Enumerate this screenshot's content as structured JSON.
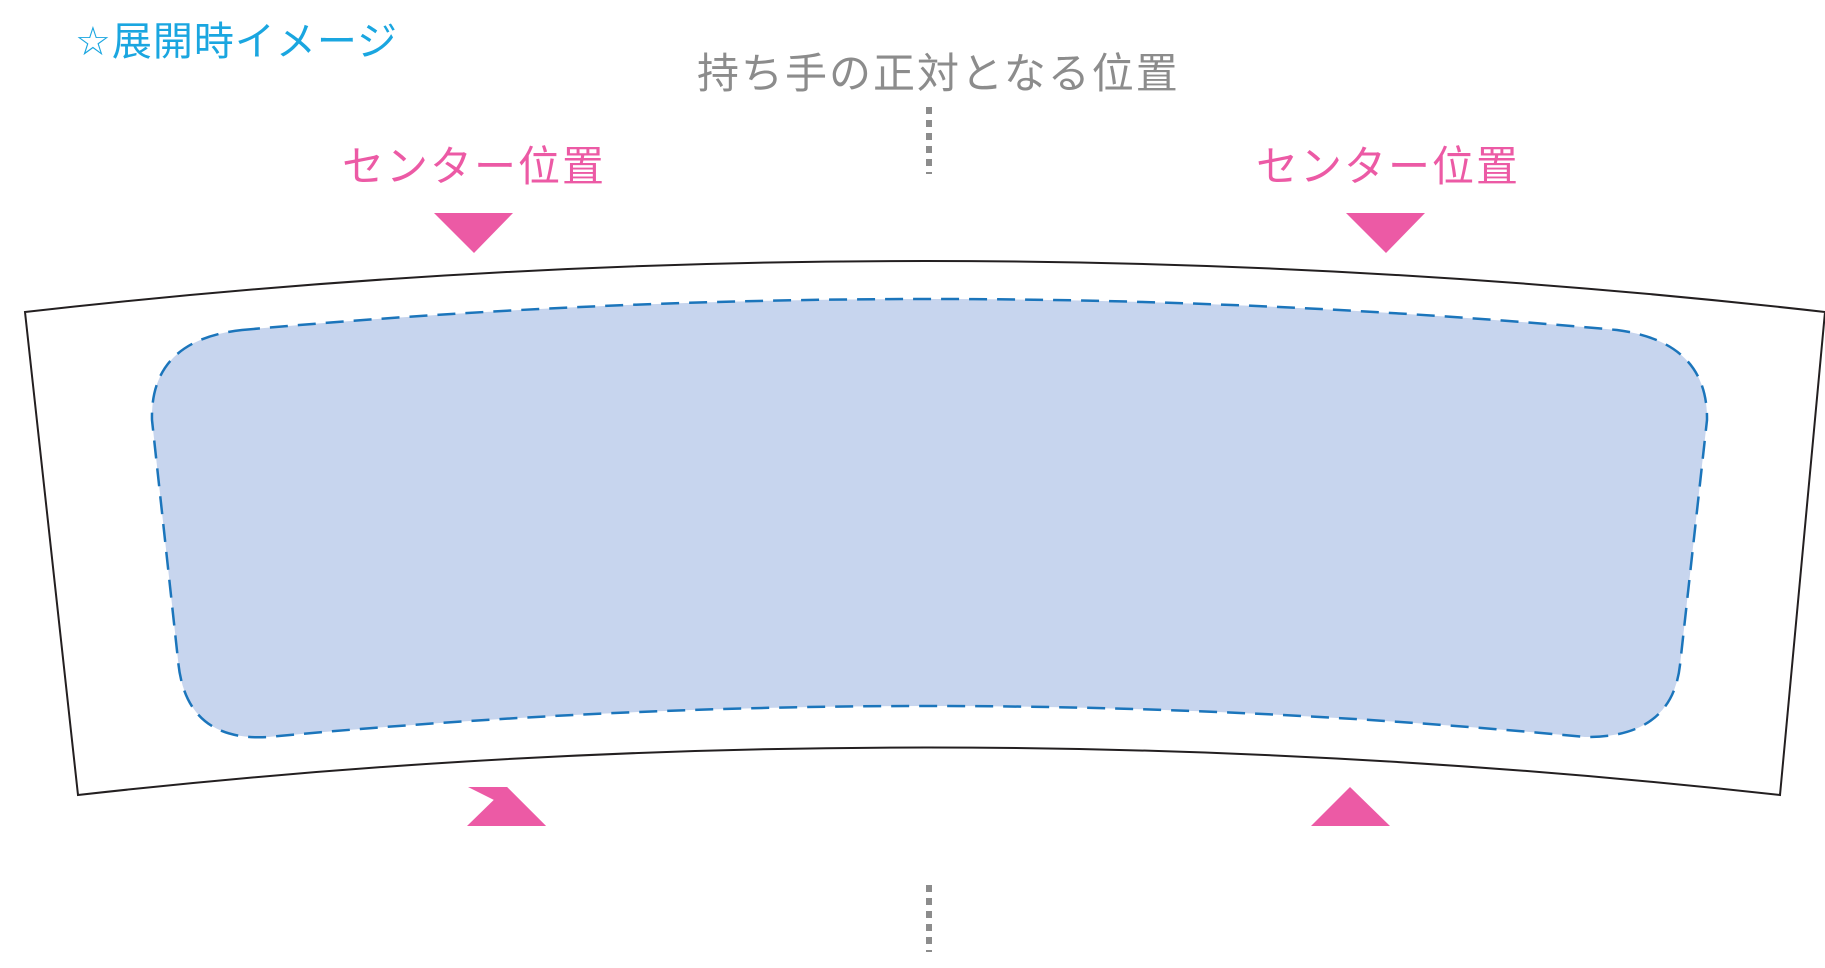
{
  "title": "☆展開時イメージ",
  "handle_opposite_label": "持ち手の正対となる位置",
  "center_labels": {
    "left": "センター位置",
    "right": "センター位置"
  },
  "colors": {
    "title": "#1aa6e0",
    "handle_label": "#8c8c8c",
    "center_marker": "#ec5aa5",
    "print_area_fill": "#c7d5ee",
    "print_area_border": "#1b75bb",
    "outline": "#231f20"
  }
}
